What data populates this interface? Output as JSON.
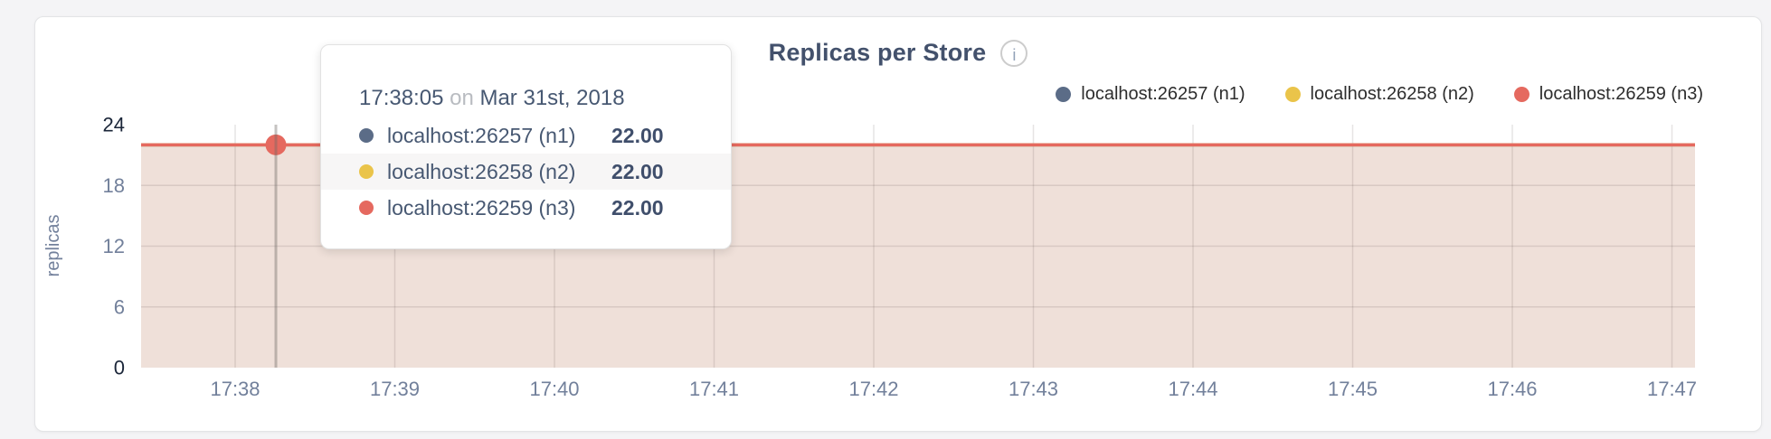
{
  "header": {
    "title": "Replicas per Store",
    "info_icon_glyph": "i"
  },
  "legend": {
    "items": [
      {
        "label": "localhost:26257 (n1)",
        "color": "#5b6c87"
      },
      {
        "label": "localhost:26258 (n2)",
        "color": "#eac44a"
      },
      {
        "label": "localhost:26259 (n3)",
        "color": "#e5695f"
      }
    ]
  },
  "tooltip": {
    "time": "17:38:05",
    "separator": "on",
    "date": "Mar 31st, 2018",
    "rows": [
      {
        "label": "localhost:26257 (n1)",
        "value": "22.00",
        "color": "#5b6c87"
      },
      {
        "label": "localhost:26258 (n2)",
        "value": "22.00",
        "color": "#eac44a"
      },
      {
        "label": "localhost:26259 (n3)",
        "value": "22.00",
        "color": "#e5695f"
      }
    ]
  },
  "chart_data": {
    "type": "area",
    "title": "Replicas per Store",
    "ylabel": "replicas",
    "x": [
      "17:38",
      "17:39",
      "17:40",
      "17:41",
      "17:42",
      "17:43",
      "17:44",
      "17:45",
      "17:46",
      "17:47"
    ],
    "y_ticks": [
      0,
      6,
      12,
      18,
      24
    ],
    "ylim": [
      0,
      24
    ],
    "grid": true,
    "legend_position": "top-right",
    "series": [
      {
        "name": "localhost:26257 (n1)",
        "color": "#5b6c87",
        "values": [
          22,
          22,
          22,
          22,
          22,
          22,
          22,
          22,
          22,
          22
        ]
      },
      {
        "name": "localhost:26258 (n2)",
        "color": "#eac44a",
        "values": [
          22,
          22,
          22,
          22,
          22,
          22,
          22,
          22,
          22,
          22
        ]
      },
      {
        "name": "localhost:26259 (n3)",
        "color": "#e5695f",
        "values": [
          22,
          22,
          22,
          22,
          22,
          22,
          22,
          22,
          22,
          22
        ]
      }
    ],
    "area_fill": "#efe0d9",
    "hover_point": {
      "time": "17:38:05",
      "value": 22
    }
  }
}
